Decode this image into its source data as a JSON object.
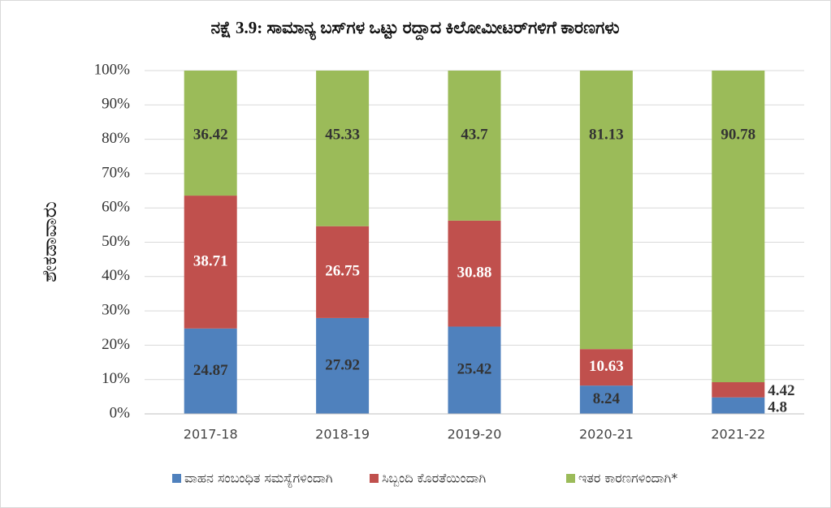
{
  "chart_data": {
    "type": "stacked_bar",
    "title": "ನಕ್ಷೆ 3.9: ಸಾಮಾನ್ಯ ಬಸ್‌ಗಳ ಒಟ್ಟು ರದ್ದಾದ ಕಿಲೋಮೀಟರ್‌ಗಳಿಗೆ ಕಾರಣಗಳು",
    "y_label": "ಶೇಕಡಾವಾರು",
    "categories": [
      "2017-18",
      "2018-19",
      "2019-20",
      "2020-21",
      "2021-22"
    ],
    "series": [
      {
        "name": "ವಾಹನ ಸಂಬಂಧಿತ ಸಮಸ್ಯೆಗಳಿಂದಾಗಿ",
        "color": "#4f81bd",
        "values": [
          24.87,
          27.92,
          25.42,
          8.24,
          4.8
        ]
      },
      {
        "name": "ಸಿಬ್ಬಂದಿ ಕೊರತೆಯಿಂದಾಗಿ",
        "color": "#c0504d",
        "values": [
          38.71,
          26.75,
          30.88,
          10.63,
          4.42
        ]
      },
      {
        "name": "ಇತರ ಕಾರಣಗಳಿಂದಾಗಿ*",
        "color": "#9bbb59",
        "values": [
          36.42,
          45.33,
          43.7,
          81.13,
          90.78
        ]
      }
    ],
    "ylim": [
      0,
      100
    ],
    "yticks": [
      {
        "value": 0,
        "label": "0%"
      },
      {
        "value": 10,
        "label": "10%"
      },
      {
        "value": 20,
        "label": "20%"
      },
      {
        "value": 30,
        "label": "30%"
      },
      {
        "value": 40,
        "label": "40%"
      },
      {
        "value": 50,
        "label": "50%"
      },
      {
        "value": 60,
        "label": "60%"
      },
      {
        "value": 70,
        "label": "70%"
      },
      {
        "value": 80,
        "label": "80%"
      },
      {
        "value": 90,
        "label": "90%"
      },
      {
        "value": 100,
        "label": "100%"
      }
    ],
    "grid": true,
    "legend": "bottom"
  }
}
